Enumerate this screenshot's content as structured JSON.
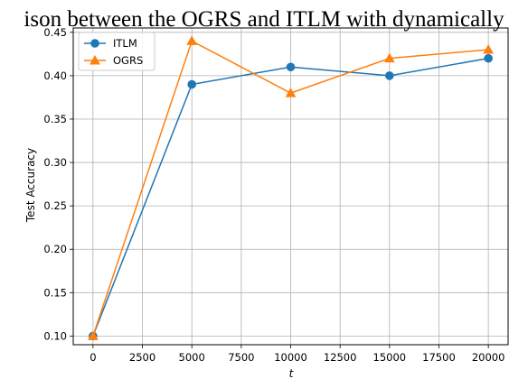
{
  "chart_data": {
    "type": "line",
    "title": "ison between the OGRS and ITLM with dynamically",
    "xlabel": "t",
    "ylabel": "Test Accuracy",
    "xlim": [
      -1000,
      21000
    ],
    "ylim": [
      0.09,
      0.455
    ],
    "x_ticks": [
      0,
      2500,
      5000,
      7500,
      10000,
      12500,
      15000,
      17500,
      20000
    ],
    "x_tick_labels": [
      "0",
      "2500",
      "5000",
      "7500",
      "10000",
      "12500",
      "15000",
      "17500",
      "20000"
    ],
    "y_ticks": [
      0.1,
      0.15,
      0.2,
      0.25,
      0.3,
      0.35,
      0.4,
      0.45
    ],
    "y_tick_labels": [
      "0.10",
      "0.15",
      "0.20",
      "0.25",
      "0.30",
      "0.35",
      "0.40",
      "0.45"
    ],
    "grid": true,
    "legend_position": "upper-left",
    "x": [
      0,
      5000,
      10000,
      15000,
      20000
    ],
    "series": [
      {
        "name": "ITLM",
        "values": [
          0.1,
          0.39,
          0.41,
          0.4,
          0.42
        ],
        "color": "#1f77b4",
        "marker": "circle"
      },
      {
        "name": "OGRS",
        "values": [
          0.1,
          0.44,
          0.38,
          0.42,
          0.43
        ],
        "color": "#ff7f0e",
        "marker": "triangle"
      }
    ]
  }
}
